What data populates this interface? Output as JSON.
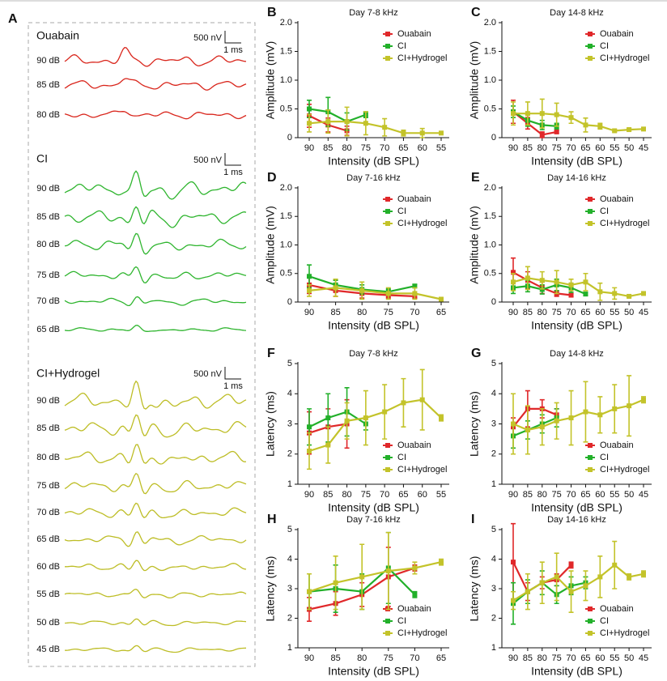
{
  "panel_a": {
    "label": "A",
    "groups": [
      {
        "name": "Ouabain",
        "color": "#d9261c",
        "scale_y": "500 nV",
        "scale_x": "1 ms",
        "levels": [
          "90 dB",
          "85 dB",
          "80 dB"
        ]
      },
      {
        "name": "CI",
        "color": "#2fb52f",
        "scale_y": "500 nV",
        "scale_x": "1 ms",
        "levels": [
          "90 dB",
          "85 dB",
          "80 dB",
          "75 dB",
          "70 dB",
          "65 dB"
        ]
      },
      {
        "name": "CI+Hydrogel",
        "color": "#bdbd25",
        "scale_y": "500 nV",
        "scale_x": "1 ms",
        "levels": [
          "90 dB",
          "85 dB",
          "80 dB",
          "75 dB",
          "70 dB",
          "65 dB",
          "60 dB",
          "55 dB",
          "50 dB",
          "45 dB"
        ]
      }
    ]
  },
  "chart_data": [
    {
      "label": "B",
      "type": "line",
      "title": "Day 7-8 kHz",
      "x_label": "Intensity (dB SPL)",
      "y_label": "Amplitude (mV)",
      "categories": [
        "90",
        "85",
        "80",
        "75",
        "70",
        "65",
        "60",
        "55"
      ],
      "ylim": [
        0,
        2
      ],
      "yticks": [
        0,
        0.5,
        {
          "value": 1,
          "label": "1.0"
        },
        1.5,
        {
          "value": 2,
          "label": "2.0"
        }
      ],
      "legend": "upper right",
      "series": [
        {
          "name": "Ouabain",
          "color": "#e0282a",
          "values": [
            0.38,
            0.22,
            0.12,
            null,
            null,
            null,
            null,
            null
          ],
          "errors": [
            0.2,
            0.12,
            0.08,
            null,
            null,
            null,
            null,
            null
          ]
        },
        {
          "name": "CI",
          "color": "#22b02a",
          "values": [
            0.5,
            0.45,
            0.28,
            0.4,
            null,
            null,
            null,
            null
          ],
          "errors": [
            0.15,
            0.25,
            0.15,
            0.05,
            null,
            null,
            null,
            null
          ]
        },
        {
          "name": "CI+Hydrogel",
          "color": "#c3c32a",
          "values": [
            0.25,
            0.28,
            0.28,
            0.25,
            0.18,
            0.08,
            0.08,
            0.08
          ],
          "errors": [
            0.15,
            0.2,
            0.25,
            0.2,
            0.15,
            0.05,
            0.08,
            0.02
          ]
        }
      ]
    },
    {
      "label": "C",
      "type": "line",
      "title": "Day 14-8 kHz",
      "x_label": "Intensity (dB SPL)",
      "y_label": "Amplitude (mV)",
      "categories": [
        "90",
        "85",
        "80",
        "75",
        "70",
        "65",
        "60",
        "55",
        "50",
        "45"
      ],
      "ylim": [
        0,
        2
      ],
      "yticks": [
        0,
        0.5,
        {
          "value": 1,
          "label": "1.0"
        },
        1.5,
        {
          "value": 2,
          "label": "2.0"
        }
      ],
      "legend": "upper right",
      "series": [
        {
          "name": "Ouabain",
          "color": "#e0282a",
          "values": [
            0.45,
            0.25,
            0.05,
            0.1,
            null,
            null,
            null,
            null,
            null,
            null
          ],
          "errors": [
            0.2,
            0.1,
            0.05,
            0.02,
            null,
            null,
            null,
            null,
            null,
            null
          ]
        },
        {
          "name": "CI",
          "color": "#22b02a",
          "values": [
            0.45,
            0.3,
            0.22,
            0.2,
            null,
            null,
            null,
            null,
            null,
            null
          ],
          "errors": [
            0.1,
            0.1,
            0.08,
            0.05,
            null,
            null,
            null,
            null,
            null,
            null
          ]
        },
        {
          "name": "CI+Hydrogel",
          "color": "#c3c32a",
          "values": [
            0.42,
            0.42,
            0.42,
            0.4,
            0.35,
            0.22,
            0.2,
            0.12,
            0.14,
            0.15
          ],
          "errors": [
            0.2,
            0.2,
            0.25,
            0.2,
            0.1,
            0.12,
            0.05,
            0.02,
            0.02,
            0.02
          ]
        }
      ]
    },
    {
      "label": "D",
      "type": "line",
      "title": "Day 7-16 kHz",
      "x_label": "Intensity (dB SPL)",
      "y_label": "Amplitude (mV)",
      "categories": [
        "90",
        "85",
        "80",
        "75",
        "70",
        "65"
      ],
      "ylim": [
        0,
        2
      ],
      "yticks": [
        0,
        0.5,
        {
          "value": 1,
          "label": "1.0"
        },
        1.5,
        {
          "value": 2,
          "label": "2.0"
        }
      ],
      "legend": "upper right",
      "series": [
        {
          "name": "Ouabain",
          "color": "#e0282a",
          "values": [
            0.3,
            0.2,
            0.15,
            0.12,
            0.1,
            null
          ],
          "errors": [
            0.15,
            0.1,
            0.08,
            0.05,
            0.03,
            null
          ]
        },
        {
          "name": "CI",
          "color": "#22b02a",
          "values": [
            0.45,
            0.3,
            0.22,
            0.18,
            0.28,
            null
          ],
          "errors": [
            0.2,
            0.08,
            0.08,
            0.05,
            0.03,
            null
          ]
        },
        {
          "name": "CI+Hydrogel",
          "color": "#c3c32a",
          "values": [
            0.2,
            0.25,
            0.2,
            0.15,
            0.15,
            0.05
          ],
          "errors": [
            0.1,
            0.15,
            0.15,
            0.1,
            0.1,
            0.02
          ]
        }
      ]
    },
    {
      "label": "E",
      "type": "line",
      "title": "Day 14-16 kHz",
      "x_label": "Intensity (dB SPL)",
      "y_label": "Amplitude (mV)",
      "categories": [
        "90",
        "85",
        "80",
        "75",
        "70",
        "65",
        "60",
        "55",
        "50",
        "45"
      ],
      "ylim": [
        0,
        2
      ],
      "yticks": [
        0,
        0.5,
        {
          "value": 1,
          "label": "1.0"
        },
        1.5,
        {
          "value": 2,
          "label": "2.0"
        }
      ],
      "legend": "upper right",
      "series": [
        {
          "name": "Ouabain",
          "color": "#e0282a",
          "values": [
            0.52,
            0.38,
            0.25,
            0.15,
            0.12,
            null,
            null,
            null,
            null,
            null
          ],
          "errors": [
            0.25,
            0.15,
            0.1,
            0.05,
            0.03,
            null,
            null,
            null,
            null,
            null
          ]
        },
        {
          "name": "CI",
          "color": "#22b02a",
          "values": [
            0.25,
            0.28,
            0.22,
            0.3,
            0.25,
            0.14,
            null,
            null,
            null,
            null
          ],
          "errors": [
            0.1,
            0.1,
            0.08,
            0.1,
            0.08,
            0.03,
            null,
            null,
            null,
            null
          ]
        },
        {
          "name": "CI+Hydrogel",
          "color": "#c3c32a",
          "values": [
            0.35,
            0.42,
            0.38,
            0.35,
            0.3,
            0.35,
            0.18,
            0.15,
            0.1,
            0.15
          ],
          "errors": [
            0.15,
            0.2,
            0.15,
            0.2,
            0.1,
            0.15,
            0.15,
            0.1,
            0.02,
            0.02
          ]
        }
      ]
    },
    {
      "label": "F",
      "type": "line",
      "title": "Day 7-8 kHz",
      "x_label": "Intensity (dB SPL)",
      "y_label": "Latency (ms)",
      "categories": [
        "90",
        "85",
        "80",
        "75",
        "70",
        "65",
        "60",
        "55"
      ],
      "ylim": [
        1,
        5
      ],
      "yticks": [
        1,
        2,
        3,
        4,
        5
      ],
      "legend": "lower right",
      "series": [
        {
          "name": "Ouabain",
          "color": "#e0282a",
          "values": [
            2.7,
            2.9,
            3.0,
            null,
            null,
            null,
            null,
            null
          ],
          "errors": [
            0.7,
            0.6,
            0.8,
            null,
            null,
            null,
            null,
            null
          ]
        },
        {
          "name": "CI",
          "color": "#22b02a",
          "values": [
            2.9,
            3.2,
            3.4,
            3.0,
            null,
            null,
            null,
            null
          ],
          "errors": [
            0.6,
            0.8,
            0.8,
            0.2,
            null,
            null,
            null,
            null
          ]
        },
        {
          "name": "CI+Hydrogel",
          "color": "#c3c32a",
          "values": [
            2.1,
            2.3,
            3.1,
            3.2,
            3.4,
            3.7,
            3.8,
            3.2
          ],
          "errors": [
            0.6,
            0.6,
            0.6,
            0.9,
            0.9,
            0.8,
            1.0,
            0.1
          ]
        }
      ]
    },
    {
      "label": "G",
      "type": "line",
      "title": "Day 14-8 kHz",
      "x_label": "Intensity (dB SPL)",
      "y_label": "Latency (ms)",
      "categories": [
        "90",
        "85",
        "80",
        "75",
        "70",
        "65",
        "60",
        "55",
        "50",
        "45"
      ],
      "ylim": [
        1,
        5
      ],
      "yticks": [
        1,
        2,
        3,
        4,
        5
      ],
      "legend": "lower right",
      "series": [
        {
          "name": "Ouabain",
          "color": "#e0282a",
          "values": [
            2.9,
            3.5,
            3.5,
            3.3,
            null,
            null,
            null,
            null,
            null,
            null
          ],
          "errors": [
            0.3,
            0.6,
            0.3,
            0.2,
            null,
            null,
            null,
            null,
            null,
            null
          ]
        },
        {
          "name": "CI",
          "color": "#22b02a",
          "values": [
            2.6,
            2.8,
            3.0,
            3.2,
            null,
            null,
            null,
            null,
            null,
            null
          ],
          "errors": [
            0.4,
            0.3,
            0.3,
            0.3,
            null,
            null,
            null,
            null,
            null,
            null
          ]
        },
        {
          "name": "CI+Hydrogel",
          "color": "#c3c32a",
          "values": [
            3.0,
            2.8,
            2.9,
            3.1,
            3.2,
            3.4,
            3.3,
            3.5,
            3.6,
            3.8
          ],
          "errors": [
            1.0,
            0.8,
            0.6,
            0.6,
            0.9,
            1.0,
            0.6,
            0.8,
            1.0,
            0.1
          ]
        }
      ]
    },
    {
      "label": "H",
      "type": "line",
      "title": "Day 7-16 kHz",
      "x_label": "Intensity (dB SPL)",
      "y_label": "Latency (ms)",
      "categories": [
        "90",
        "85",
        "80",
        "75",
        "70",
        "65"
      ],
      "ylim": [
        1,
        5
      ],
      "yticks": [
        1,
        2,
        3,
        4,
        5
      ],
      "legend": "lower right",
      "series": [
        {
          "name": "Ouabain",
          "color": "#e0282a",
          "values": [
            2.3,
            2.5,
            2.8,
            3.4,
            3.7,
            null
          ],
          "errors": [
            0.4,
            0.4,
            0.4,
            1.0,
            0.1,
            null
          ]
        },
        {
          "name": "CI",
          "color": "#22b02a",
          "values": [
            2.9,
            3.0,
            2.9,
            3.7,
            2.8,
            null
          ],
          "errors": [
            0.6,
            0.8,
            0.6,
            1.2,
            0.1,
            null
          ]
        },
        {
          "name": "CI+Hydrogel",
          "color": "#c3c32a",
          "values": [
            2.9,
            3.2,
            3.4,
            3.6,
            3.7,
            3.9
          ],
          "errors": [
            0.6,
            0.9,
            1.1,
            1.3,
            0.2,
            0.1
          ]
        }
      ]
    },
    {
      "label": "I",
      "type": "line",
      "title": "Day 14-16 kHz",
      "x_label": "Intensity (dB SPL)",
      "y_label": "Latency (ms)",
      "categories": [
        "90",
        "85",
        "80",
        "75",
        "70",
        "65",
        "60",
        "55",
        "50",
        "45"
      ],
      "ylim": [
        1,
        5
      ],
      "yticks": [
        1,
        2,
        3,
        4,
        5
      ],
      "legend": "lower right",
      "series": [
        {
          "name": "Ouabain",
          "color": "#e0282a",
          "values": [
            3.9,
            2.9,
            3.2,
            3.3,
            3.8,
            null,
            null,
            null,
            null,
            null
          ],
          "errors": [
            1.3,
            0.3,
            0.2,
            0.2,
            0.1,
            null,
            null,
            null,
            null,
            null
          ]
        },
        {
          "name": "CI",
          "color": "#22b02a",
          "values": [
            2.5,
            2.9,
            3.2,
            2.8,
            3.1,
            3.2,
            null,
            null,
            null,
            null
          ],
          "errors": [
            0.7,
            0.4,
            0.4,
            0.3,
            0.3,
            0.2,
            null,
            null,
            null,
            null
          ]
        },
        {
          "name": "CI+Hydrogel",
          "color": "#c3c32a",
          "values": [
            2.6,
            2.9,
            3.2,
            3.4,
            2.9,
            3.1,
            3.4,
            3.8,
            3.4,
            3.5
          ],
          "errors": [
            0.3,
            0.6,
            0.7,
            0.8,
            0.7,
            0.5,
            0.7,
            0.8,
            0.1,
            0.1
          ]
        }
      ]
    }
  ]
}
